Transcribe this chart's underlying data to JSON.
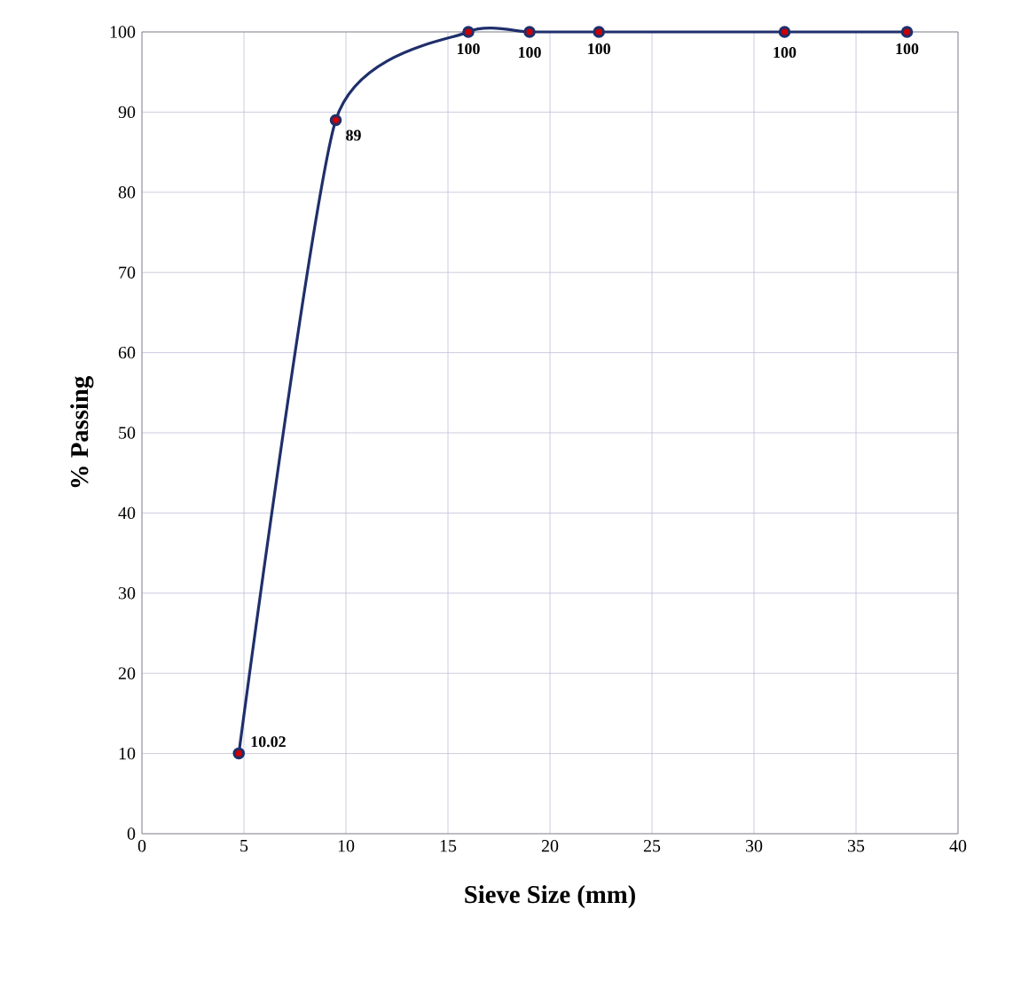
{
  "chart_data": {
    "type": "line",
    "xlabel": "Sieve Size (mm)",
    "ylabel": "% Passing",
    "x": [
      4.75,
      9.5,
      16,
      19,
      22.4,
      31.5,
      37.5
    ],
    "series": [
      {
        "color": "#1f2f6b",
        "values": [
          10.02,
          89,
          100,
          100,
          100,
          100,
          100
        ]
      }
    ],
    "data_labels": true,
    "marker": "circle",
    "line_style": "solid",
    "grid": true,
    "xlim": [
      0,
      40
    ],
    "xticks": [
      0,
      5,
      10,
      15,
      20,
      25,
      30,
      35,
      40
    ],
    "ylim": [
      0,
      100
    ],
    "yticks": [
      0,
      10,
      20,
      30,
      40,
      50,
      60,
      70,
      80,
      90,
      100
    ]
  }
}
